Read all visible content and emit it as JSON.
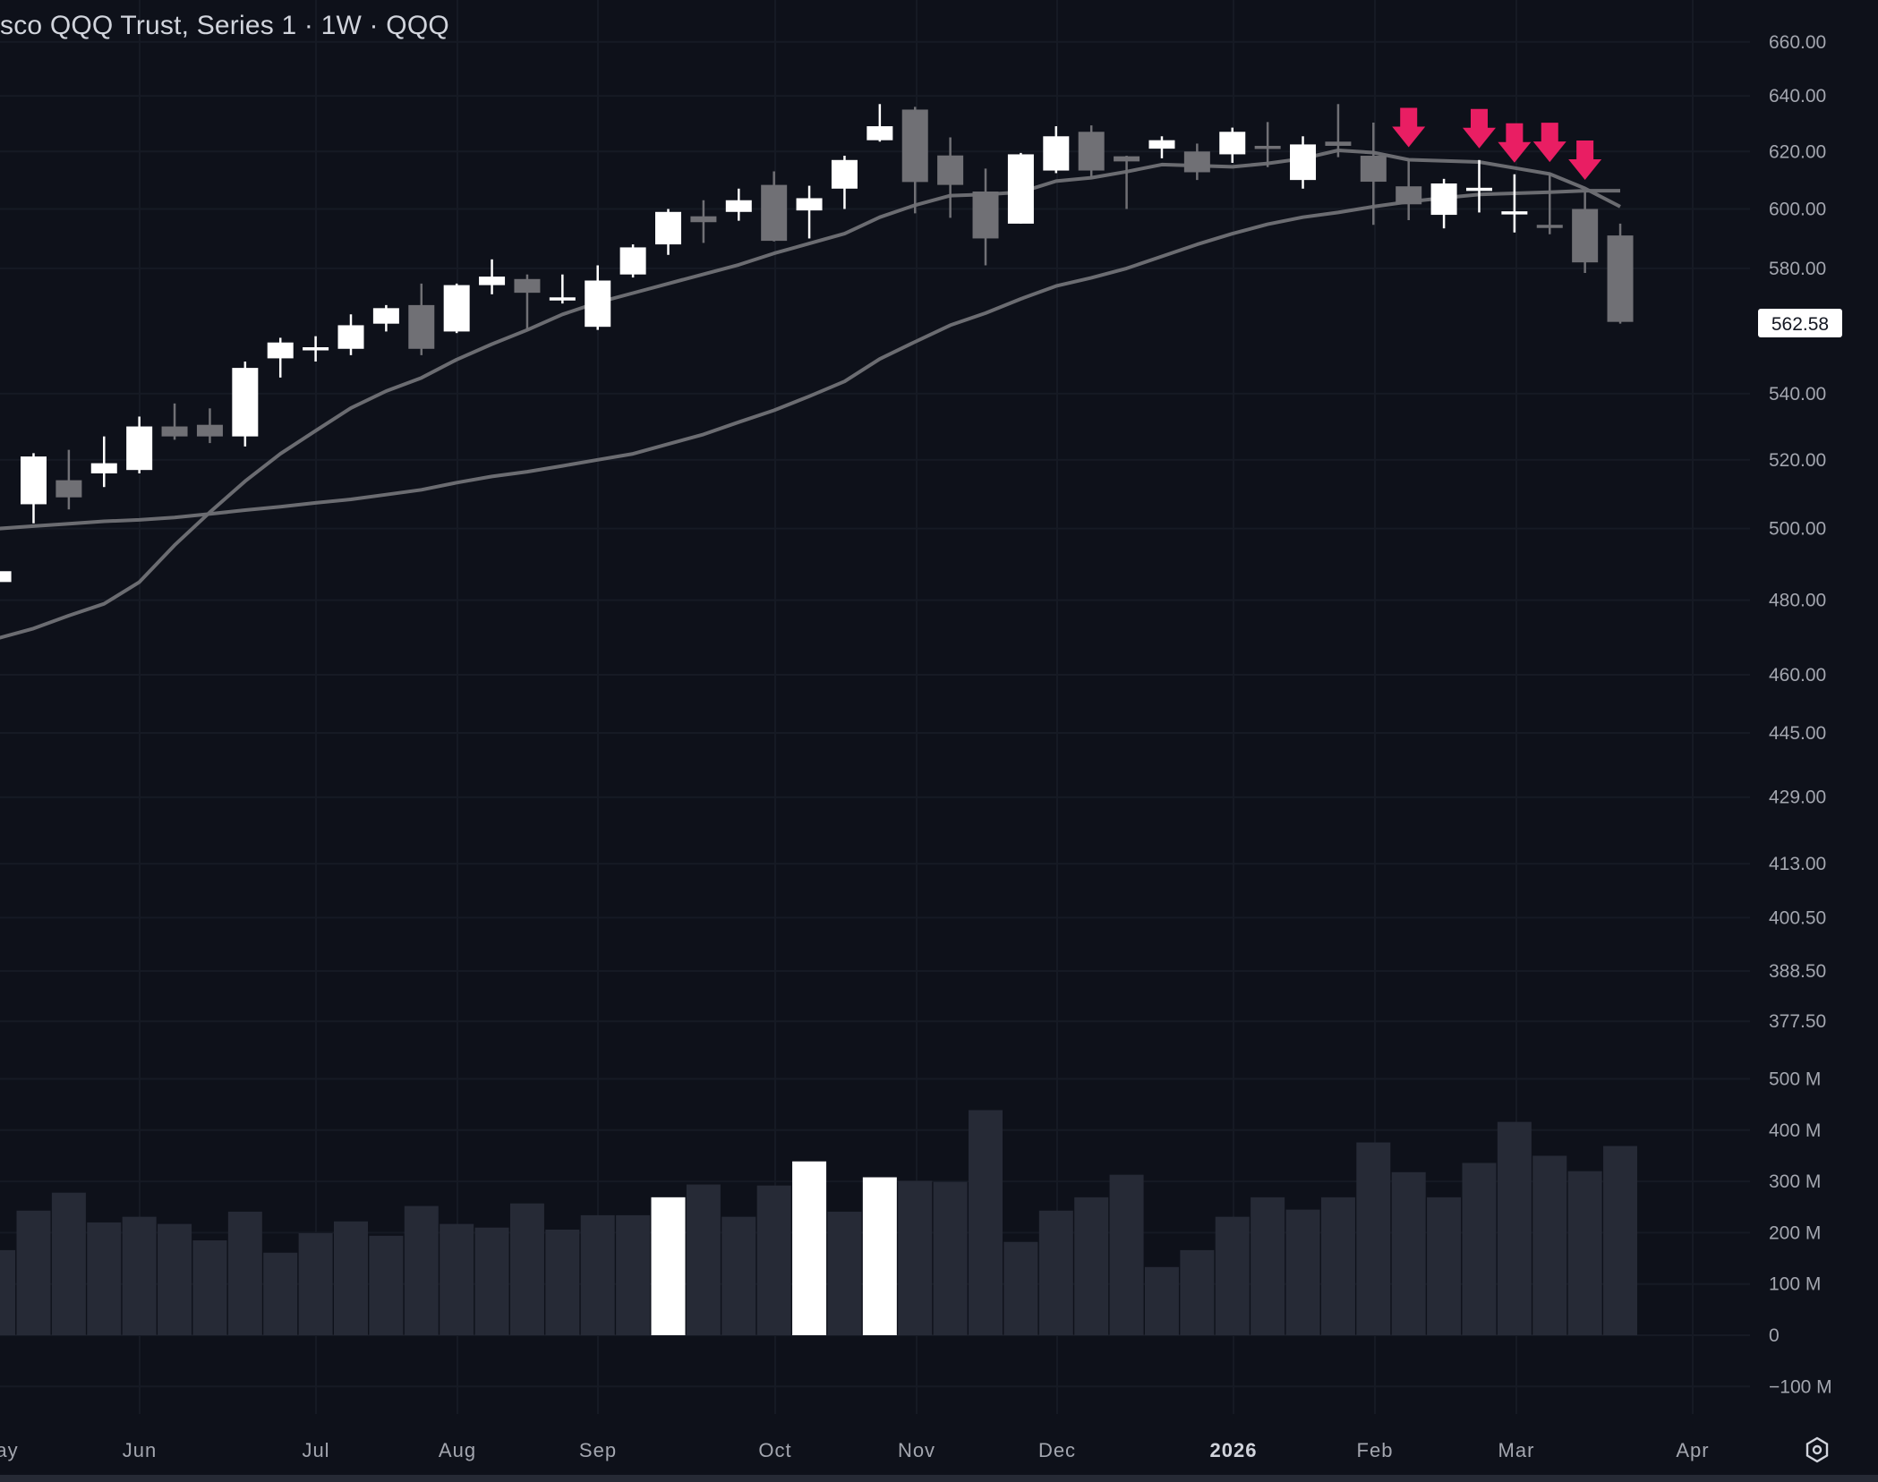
{
  "header": {
    "title": "sco QQQ Trust, Series 1 · 1W · QQQ"
  },
  "last_price": {
    "value": "562.58"
  },
  "colors": {
    "background": "#0e111a",
    "grid": "#161a24",
    "up_candle": "#ffffff",
    "down_candle": "#707075",
    "moving_average": "#6b6c71",
    "volume": "#262a36",
    "volume_highlight": "#ffffff",
    "signal_arrow": "#e91e63",
    "axis_text": "#a3a6af",
    "last_price_badge": "#ffffff"
  },
  "settings_icon": "hexagon-gear-icon",
  "chart_data": {
    "type": "candlestick",
    "interval": "1W",
    "y_scale": "log",
    "ylim": [
      375,
      665
    ],
    "grid": true,
    "y_tick_labels": [
      "660.00",
      "640.00",
      "620.00",
      "600.00",
      "580.00",
      "540.00",
      "520.00",
      "500.00",
      "480.00",
      "460.00",
      "445.00",
      "429.00",
      "413.00",
      "400.50",
      "388.50",
      "377.50"
    ],
    "x_tick_labels": [
      "ay",
      "Jun",
      "Jul",
      "Aug",
      "Sep",
      "Oct",
      "Nov",
      "Dec",
      "2026",
      "Feb",
      "Mar",
      "Apr"
    ],
    "x_tick_bold": [
      "2026"
    ],
    "dates": [
      "2025-05-05",
      "2025-05-12",
      "2025-05-19",
      "2025-05-26",
      "2025-06-02",
      "2025-06-09",
      "2025-06-16",
      "2025-06-23",
      "2025-06-30",
      "2025-07-07",
      "2025-07-14",
      "2025-07-21",
      "2025-07-28",
      "2025-08-04",
      "2025-08-11",
      "2025-08-18",
      "2025-08-25",
      "2025-09-01",
      "2025-09-08",
      "2025-09-15",
      "2025-09-22",
      "2025-09-29",
      "2025-10-06",
      "2025-10-13",
      "2025-10-20",
      "2025-10-27",
      "2025-11-03",
      "2025-11-10",
      "2025-11-17",
      "2025-11-24",
      "2025-12-01",
      "2025-12-08",
      "2025-12-15",
      "2025-12-22",
      "2025-12-29",
      "2026-01-05",
      "2026-01-12",
      "2026-01-19",
      "2026-01-26",
      "2026-02-02",
      "2026-02-09",
      "2026-02-16",
      "2026-02-23",
      "2026-03-02",
      "2026-03-09",
      "2026-03-16",
      "2026-03-23"
    ],
    "ohlc_fields": [
      "open",
      "high",
      "low",
      "close"
    ],
    "candles": [
      [
        485,
        489,
        484,
        488
      ],
      [
        507,
        522,
        501.5,
        521
      ],
      [
        514,
        523,
        505.5,
        509
      ],
      [
        516,
        527,
        512,
        519
      ],
      [
        517,
        533,
        516,
        530
      ],
      [
        530,
        537,
        526,
        527
      ],
      [
        530.5,
        535.5,
        525,
        527
      ],
      [
        527,
        550,
        524,
        548
      ],
      [
        551,
        557.5,
        545,
        556
      ],
      [
        554,
        558,
        550,
        554.5
      ],
      [
        554,
        565,
        552,
        561.5
      ],
      [
        562,
        568,
        559.5,
        567
      ],
      [
        568,
        575,
        552,
        554
      ],
      [
        559.5,
        575,
        559,
        574.5
      ],
      [
        574.5,
        583,
        571.5,
        577.3
      ],
      [
        576.5,
        578,
        560,
        572
      ],
      [
        570,
        578,
        568.5,
        570.5
      ],
      [
        561,
        581,
        560,
        576
      ],
      [
        578,
        588,
        577,
        587
      ],
      [
        588,
        600,
        584.5,
        599
      ],
      [
        597.5,
        603,
        588.5,
        595.5
      ],
      [
        599,
        607,
        596,
        603
      ],
      [
        608.3,
        613,
        589,
        589.2
      ],
      [
        599.5,
        608,
        590,
        603.7
      ],
      [
        607,
        618.5,
        600,
        617
      ],
      [
        624,
        637,
        623.5,
        629
      ],
      [
        635,
        636,
        598.5,
        609.3
      ],
      [
        618.6,
        625,
        597,
        608.3
      ],
      [
        606,
        614,
        581,
        590
      ],
      [
        595,
        619.5,
        595,
        619
      ],
      [
        613.3,
        629,
        612.4,
        625.4
      ],
      [
        627,
        629.3,
        611,
        613.3
      ],
      [
        618.3,
        618.5,
        600,
        616.5
      ],
      [
        621,
        625.4,
        617.6,
        624
      ],
      [
        620,
        622.8,
        610,
        612.7
      ],
      [
        619,
        628.5,
        616,
        627
      ],
      [
        622,
        630.5,
        614.5,
        621
      ],
      [
        610,
        625.4,
        607,
        622.5
      ],
      [
        623.5,
        637,
        618,
        622
      ],
      [
        618.5,
        630.3,
        594.6,
        609.4
      ],
      [
        607.8,
        617.4,
        596.2,
        601.6
      ],
      [
        598,
        610.4,
        593.4,
        608.8
      ],
      [
        607,
        617,
        598.8,
        607.3
      ],
      [
        599,
        612,
        592,
        599.2
      ],
      [
        594.6,
        612.2,
        591.4,
        594.4
      ],
      [
        600,
        606,
        578.5,
        582
      ],
      [
        591,
        595,
        562,
        562.58
      ]
    ],
    "moving_averages": [
      {
        "values": [
          469.7,
          472.3,
          475.8,
          479,
          485,
          495.3,
          504.7,
          513.7,
          521.8,
          528.7,
          535.6,
          540.8,
          544.9,
          550.6,
          555.5,
          560,
          565,
          568.8,
          571.9,
          575,
          578.1,
          581.2,
          585,
          588.3,
          591.6,
          597.2,
          601.3,
          604.6,
          605,
          605.8,
          609.6,
          610.8,
          612.9,
          615.4,
          615,
          614.6,
          615.8,
          617.5,
          620.4,
          619.6,
          617.1,
          616.7,
          616.3,
          614.2,
          612.1,
          607.1,
          600.8
        ]
      },
      {
        "values": [
          500,
          500.7,
          501.4,
          502.1,
          502.5,
          503.2,
          504.2,
          505.3,
          506.3,
          507.4,
          508.4,
          509.8,
          511.2,
          513.3,
          515.1,
          516.5,
          518.2,
          520,
          521.8,
          524.7,
          527.6,
          531.3,
          534.9,
          539.2,
          543.8,
          550.8,
          556.2,
          561.5,
          565.4,
          570,
          574.2,
          576.9,
          580,
          584,
          588,
          591.6,
          594.8,
          597.2,
          598.8,
          600.8,
          602.5,
          603.8,
          605,
          605.4,
          605.8,
          606.3,
          606.3
        ]
      }
    ],
    "signal_arrows": [
      "2026-02-09",
      "2026-02-23",
      "2026-03-02",
      "2026-03-09",
      "2026-03-16"
    ],
    "volume": {
      "unit": "M",
      "ylim": [
        -100,
        500
      ],
      "values": [
        166,
        243,
        278,
        220,
        231,
        217,
        185,
        241,
        161,
        199,
        222,
        194,
        252,
        217,
        210,
        257,
        206,
        234,
        234,
        269,
        294,
        231,
        292,
        339,
        241,
        308,
        301,
        299,
        439,
        182,
        243,
        269,
        313,
        133,
        166,
        231,
        269,
        245,
        269,
        376,
        318,
        269,
        336,
        416,
        350,
        320,
        369
      ],
      "highlighted": [
        "2025-09-15",
        "2025-10-13",
        "2025-10-27"
      ],
      "tick_labels": [
        {
          "label": "500 M",
          "value": 500
        },
        {
          "label": "400 M",
          "value": 400
        },
        {
          "label": "300 M",
          "value": 300
        },
        {
          "label": "200 M",
          "value": 200
        },
        {
          "label": "100 M",
          "value": 100
        },
        {
          "label": "0",
          "value": 0
        },
        {
          "label": "−100 M",
          "value": -100
        }
      ]
    }
  }
}
